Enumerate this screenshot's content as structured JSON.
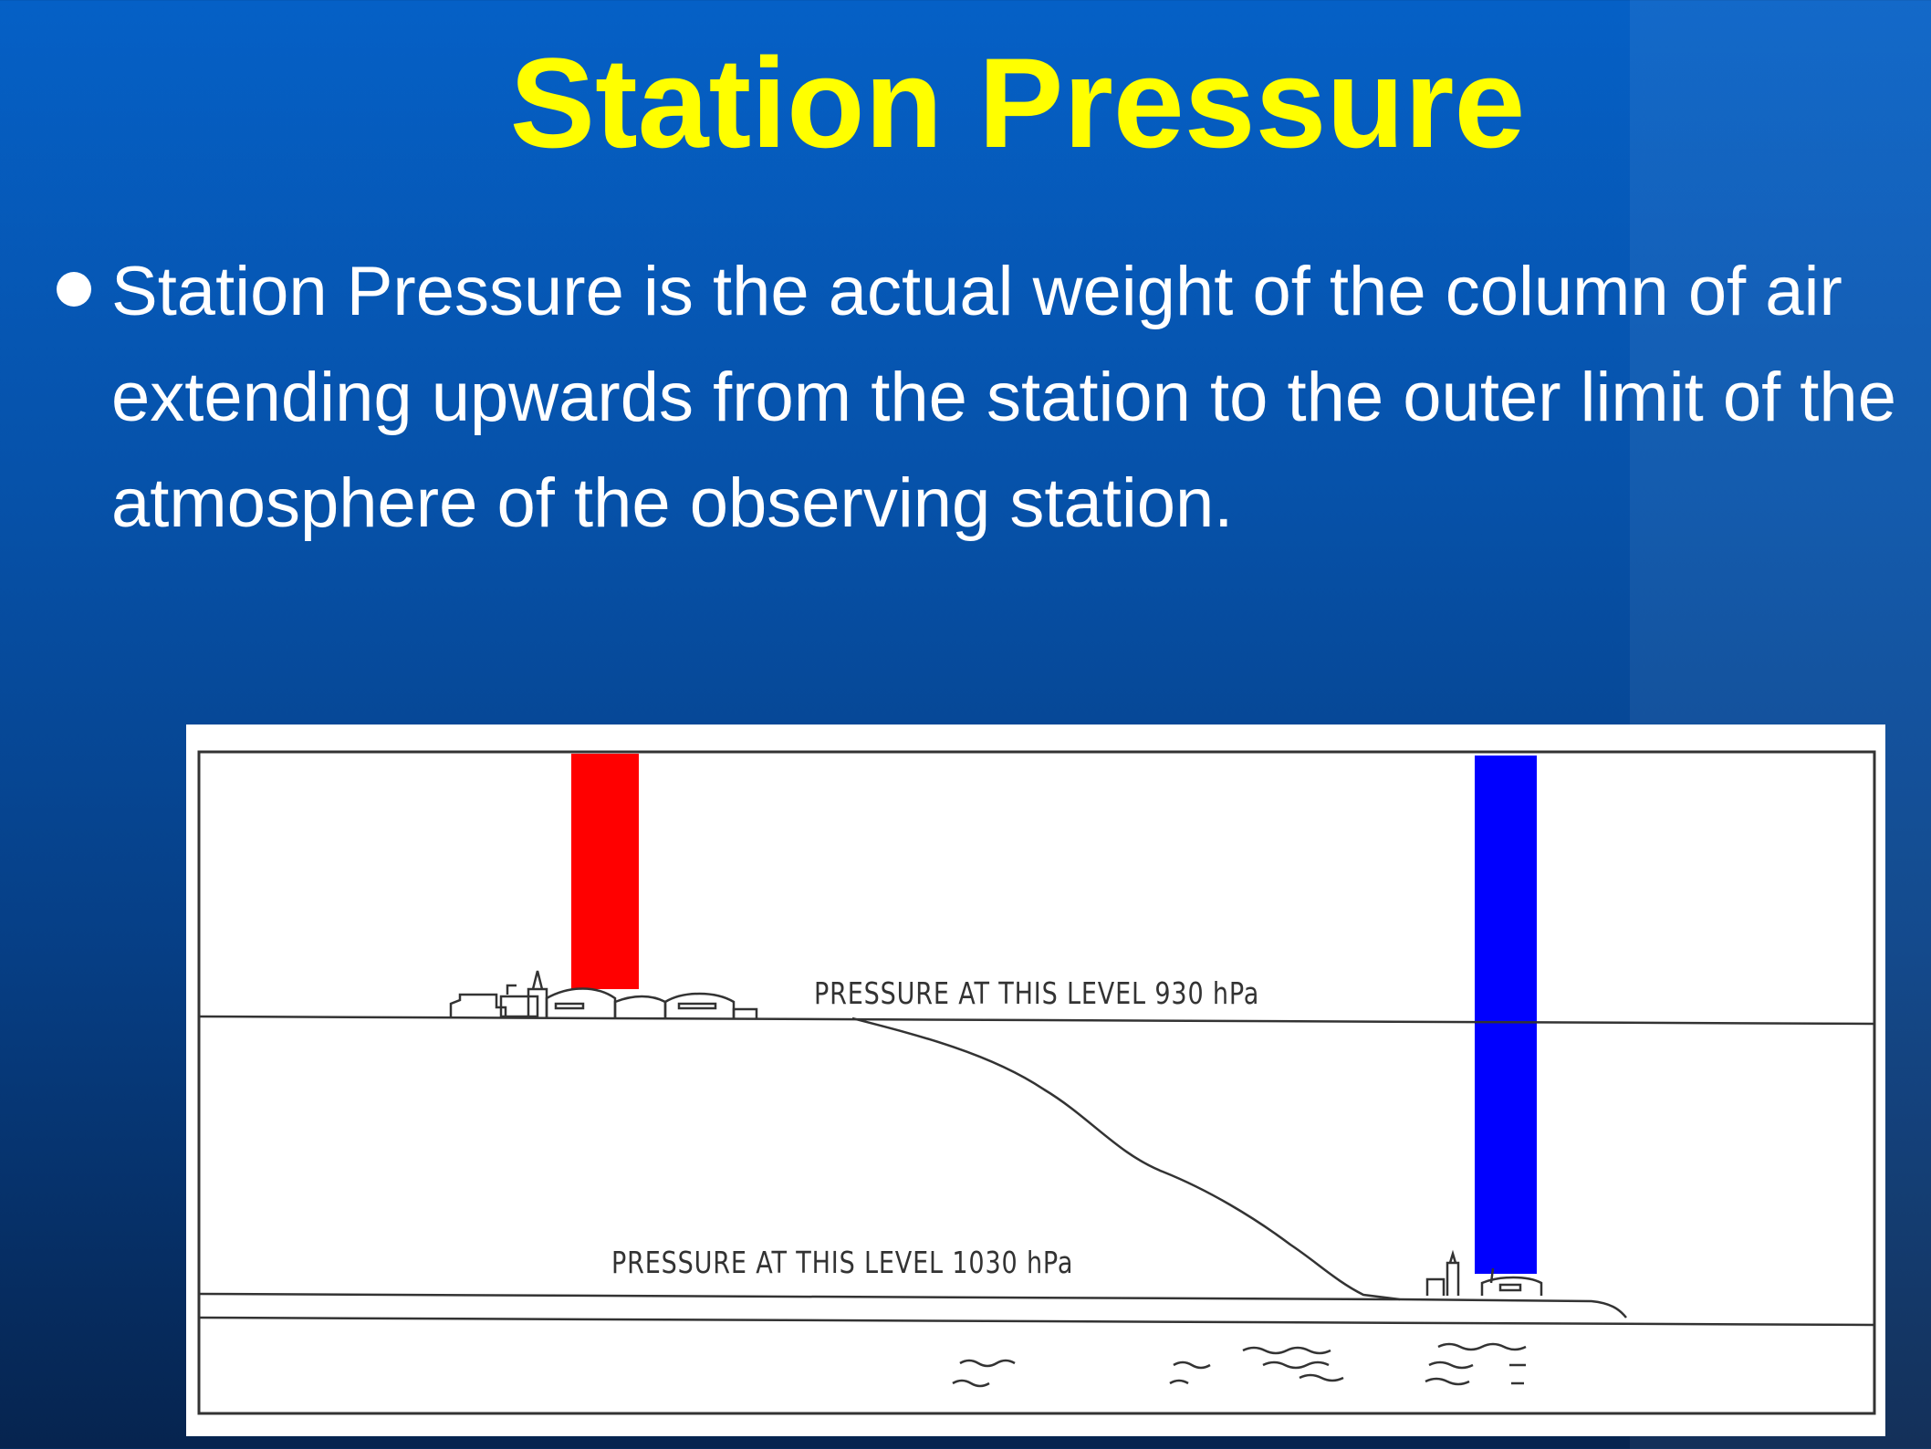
{
  "slide": {
    "title": "Station Pressure",
    "bullet_lines": [
      "Station Pressure is the actual weight of the column of air",
      "extending upwards from the station to the outer limit of the",
      "atmosphere of the observing station."
    ]
  },
  "diagram": {
    "upper_level_label": "PRESSURE AT THIS LEVEL 930 hPa",
    "lower_level_label": "PRESSURE AT THIS LEVEL 1030 hPa",
    "colors": {
      "high_station_column": "#ff0000",
      "low_station_column": "#0000ff",
      "background": "#ffffff",
      "line": "#333333"
    }
  }
}
